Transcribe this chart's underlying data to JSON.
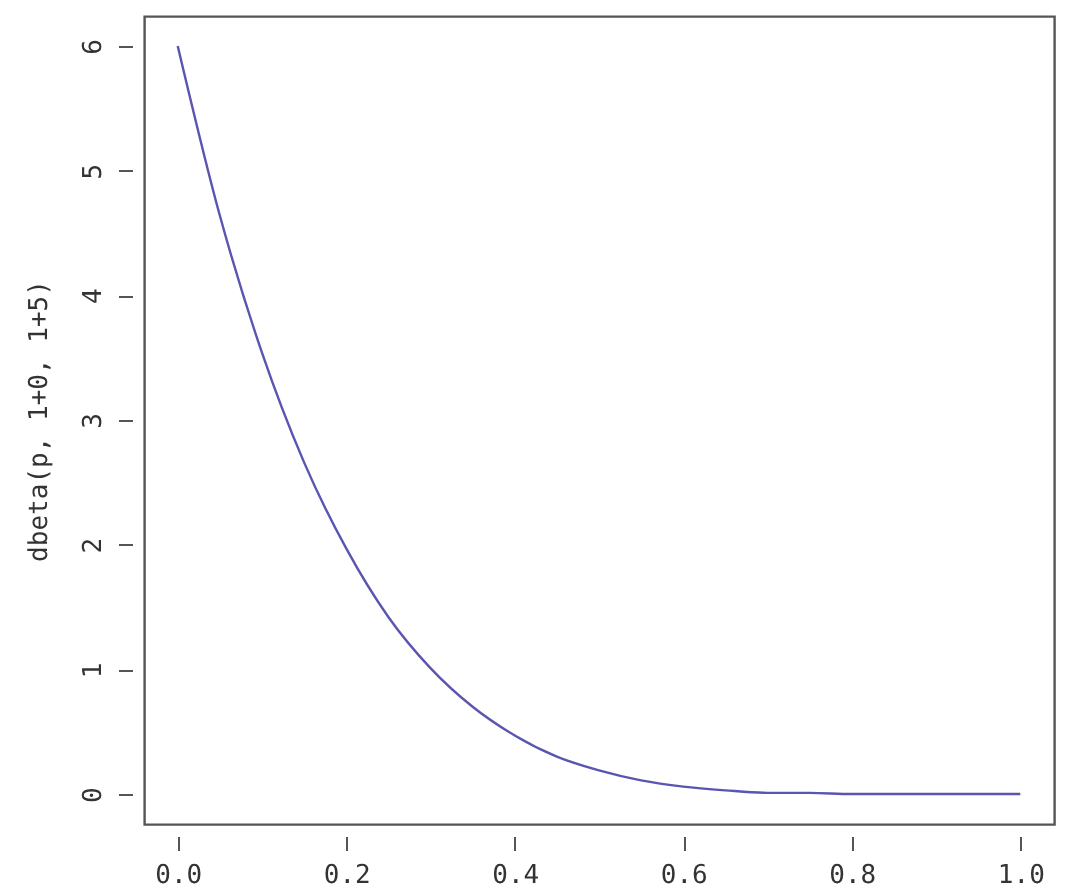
{
  "chart_data": {
    "type": "line",
    "ylabel": "dbeta(p, 1+0, 1+5)",
    "x": [
      0,
      0.05,
      0.1,
      0.15,
      0.2,
      0.25,
      0.3,
      0.35,
      0.4,
      0.45,
      0.5,
      0.55,
      0.6,
      0.65,
      0.7,
      0.75,
      0.8,
      0.85,
      0.9,
      0.95,
      1.0
    ],
    "series": [
      {
        "color": "#5a55b0",
        "values": [
          6,
          4.64,
          3.54,
          2.66,
          1.97,
          1.42,
          1.01,
          0.7,
          0.47,
          0.3,
          0.19,
          0.11,
          0.06,
          0.03,
          0.01,
          0.01,
          0,
          0,
          0,
          0,
          0
        ]
      }
    ],
    "xlim": [
      -0.04,
      1.04
    ],
    "ylim": [
      -0.24,
      6.24
    ],
    "xticks": [
      {
        "value": 0,
        "label": "0.0"
      },
      {
        "value": 0.2,
        "label": "0.2"
      },
      {
        "value": 0.4,
        "label": "0.4"
      },
      {
        "value": 0.6,
        "label": "0.6"
      },
      {
        "value": 0.8,
        "label": "0.8"
      },
      {
        "value": 1.0,
        "label": "1.0"
      }
    ],
    "yticks": [
      0,
      1,
      2,
      3,
      4,
      5,
      6
    ],
    "grid": false,
    "marker": "none",
    "line_style": "solid"
  }
}
